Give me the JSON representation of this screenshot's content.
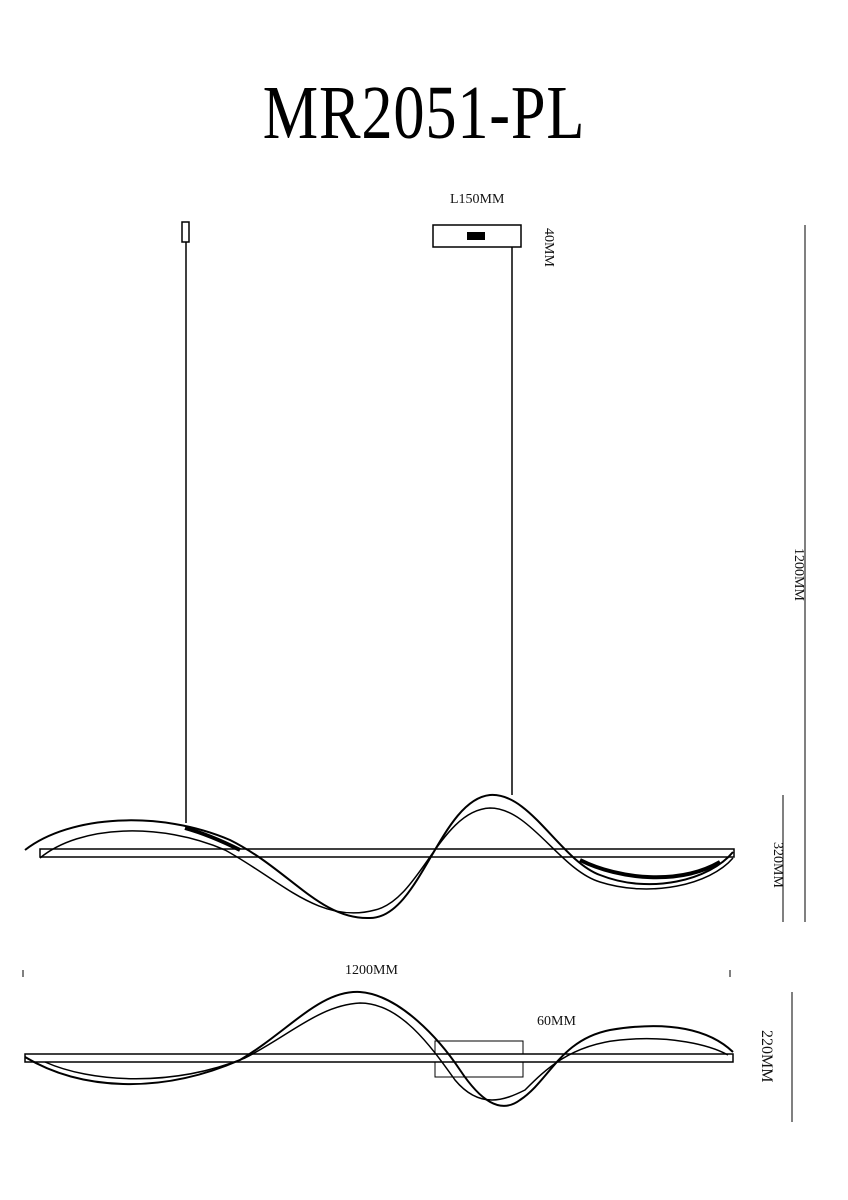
{
  "title": "MR2051-PL",
  "dimensions": {
    "canopy_length": "L150MM",
    "canopy_height": "40MM",
    "total_height": "1200MM",
    "front_height": "320MM",
    "width": "1200MM",
    "depth": "60MM",
    "top_view_height": "220MM"
  },
  "colors": {
    "line": "#000000",
    "background": "#ffffff"
  }
}
